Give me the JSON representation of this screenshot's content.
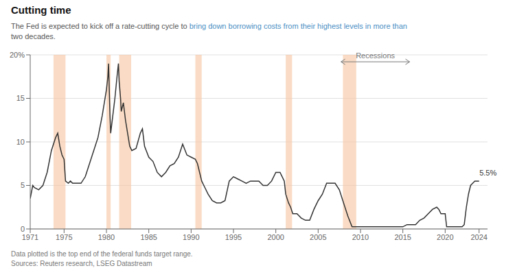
{
  "chart_data": {
    "type": "line",
    "title": "Cutting time",
    "subtitle": [
      [
        {
          "text": "The Fed is expected to kick off a rate-cutting cycle to ",
          "color": "#555555"
        },
        {
          "text": "bring down borrowing costs from their highest levels in more than",
          "color": "#4a8fc4"
        }
      ],
      [
        {
          "text": "two decades.",
          "color": "#555555"
        }
      ]
    ],
    "footnotes": [
      "Data plotted is the top end of the federal funds target range.",
      "Sources: Reuters research, LSEG Datastream"
    ],
    "color": "#333333",
    "grid": "y",
    "xlim": [
      1971,
      2025
    ],
    "xticks": [
      1971,
      1975,
      1980,
      1985,
      1990,
      1995,
      2000,
      2005,
      2010,
      2015,
      2020,
      2024
    ],
    "ylim": [
      0,
      20
    ],
    "yticks": [
      0,
      5,
      10,
      15,
      {
        "value": 20,
        "label": "20%"
      }
    ],
    "recessions": [
      [
        1973.75,
        1975.17
      ],
      [
        1980.0,
        1980.5
      ],
      [
        1981.5,
        1982.92
      ],
      [
        1990.5,
        1991.25
      ],
      [
        2001.17,
        2001.92
      ],
      [
        2007.92,
        2009.5
      ]
    ],
    "recession_color": "#f7c9a8",
    "annotations": [
      {
        "text": "Recessions",
        "x": 2011.75,
        "y": 19.2,
        "arrow": [
          2007.7,
          2015.8
        ]
      },
      {
        "text": "5.5%",
        "x": 2023.8,
        "y": 5.5
      }
    ],
    "x": [
      1971.0,
      1971.3,
      1971.5,
      1972.0,
      1972.5,
      1973.0,
      1973.5,
      1974.0,
      1974.25,
      1974.5,
      1974.75,
      1975.0,
      1975.17,
      1975.5,
      1975.75,
      1976.0,
      1976.5,
      1977.0,
      1977.5,
      1978.0,
      1978.5,
      1979.0,
      1979.5,
      1980.0,
      1980.17,
      1980.25,
      1980.42,
      1980.5,
      1980.75,
      1981.0,
      1981.25,
      1981.42,
      1981.5,
      1981.67,
      1981.75,
      1982.0,
      1982.25,
      1982.5,
      1982.75,
      1983.0,
      1983.5,
      1984.0,
      1984.25,
      1984.5,
      1985.0,
      1985.5,
      1986.0,
      1986.5,
      1987.0,
      1987.5,
      1988.0,
      1988.5,
      1989.0,
      1989.5,
      1990.0,
      1990.5,
      1990.75,
      1991.0,
      1991.25,
      1991.5,
      1992.0,
      1992.5,
      1993.0,
      1993.5,
      1994.0,
      1994.5,
      1995.0,
      1995.5,
      1996.0,
      1996.5,
      1997.0,
      1997.5,
      1998.0,
      1998.5,
      1999.0,
      1999.5,
      2000.0,
      2000.5,
      2001.0,
      2001.17,
      2001.5,
      2001.75,
      2002.0,
      2002.5,
      2003.0,
      2003.5,
      2004.0,
      2004.5,
      2005.0,
      2005.5,
      2006.0,
      2006.5,
      2007.0,
      2007.5,
      2008.0,
      2008.5,
      2009.0,
      2009.5,
      2010.0,
      2011.0,
      2012.0,
      2013.0,
      2014.0,
      2015.0,
      2015.5,
      2016.0,
      2016.5,
      2017.0,
      2017.5,
      2018.0,
      2018.5,
      2019.0,
      2019.25,
      2019.5,
      2019.75,
      2020.0,
      2020.17,
      2020.5,
      2021.0,
      2021.5,
      2022.0,
      2022.25,
      2022.5,
      2022.75,
      2023.0,
      2023.25,
      2023.5,
      2024.0
    ],
    "values": [
      3.5,
      5.0,
      4.75,
      4.5,
      5.0,
      6.5,
      9.0,
      10.5,
      11.0,
      9.5,
      8.5,
      8.0,
      5.5,
      5.25,
      5.5,
      5.25,
      5.25,
      5.25,
      6.0,
      7.5,
      9.0,
      10.5,
      13.0,
      16.0,
      17.5,
      19.0,
      13.0,
      11.0,
      13.0,
      15.0,
      17.5,
      19.0,
      17.0,
      15.0,
      13.5,
      14.5,
      12.5,
      11.0,
      9.5,
      9.0,
      9.25,
      11.0,
      11.5,
      9.5,
      8.25,
      7.75,
      6.5,
      6.0,
      6.5,
      7.25,
      7.5,
      8.25,
      9.75,
      8.5,
      8.25,
      8.0,
      7.5,
      6.5,
      5.5,
      5.0,
      4.0,
      3.25,
      3.0,
      3.0,
      3.25,
      5.5,
      6.0,
      5.75,
      5.5,
      5.25,
      5.5,
      5.5,
      5.5,
      5.0,
      5.0,
      5.5,
      6.5,
      6.5,
      5.5,
      4.0,
      3.0,
      2.5,
      1.75,
      1.75,
      1.25,
      1.0,
      1.0,
      2.25,
      3.25,
      4.0,
      5.25,
      5.25,
      5.25,
      4.5,
      3.0,
      1.5,
      0.25,
      0.25,
      0.25,
      0.25,
      0.25,
      0.25,
      0.25,
      0.25,
      0.5,
      0.5,
      0.5,
      1.0,
      1.25,
      1.75,
      2.25,
      2.5,
      2.25,
      1.75,
      1.75,
      1.75,
      0.25,
      0.25,
      0.25,
      0.25,
      0.25,
      0.5,
      2.5,
      4.0,
      5.0,
      5.25,
      5.5,
      5.5
    ]
  }
}
